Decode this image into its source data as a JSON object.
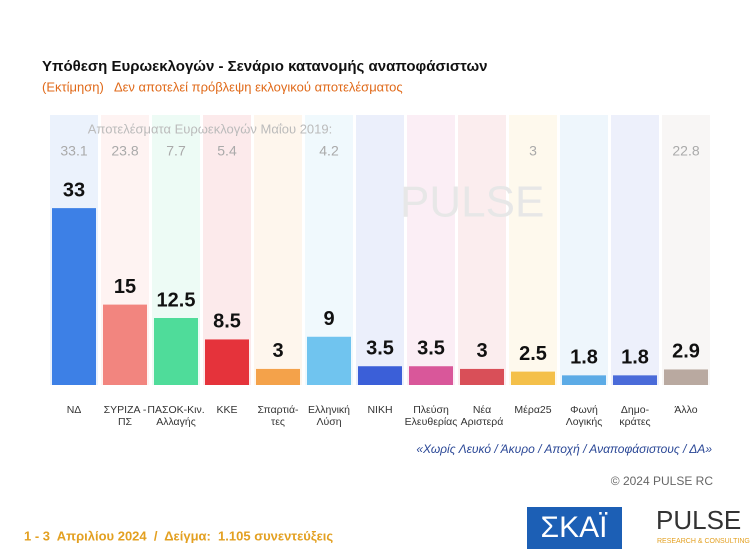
{
  "chart_data": {
    "type": "bar",
    "title": "Υπόθεση Ευρωεκλογών - Σενάριο κατανομής αναποφάσιστων",
    "subtitle": "(Εκτίμηση)   Δεν αποτελεί πρόβλεψη εκλογικού αποτελέσματος",
    "categories": [
      "ΝΔ",
      "ΣΥΡΙΖΑ -\nΠΣ",
      "ΠΑΣΟΚ-Κιν.\nΑλλαγής",
      "ΚΚΕ",
      "Σπαρτιά-\nτες",
      "Ελληνική\nΛύση",
      "ΝΙΚΗ",
      "Πλεύση\nΕλευθερίας",
      "Νέα\nΑριστερά",
      "Μέρα25",
      "Φωνή\nΛογικής",
      "Δημο-\nκράτες",
      "Άλλο"
    ],
    "values": [
      33,
      15,
      12.5,
      8.5,
      3,
      9,
      3.5,
      3.5,
      3,
      2.5,
      1.8,
      1.8,
      2.9
    ],
    "colors": [
      "#3d80e6",
      "#f2857f",
      "#4fdc9a",
      "#e5333b",
      "#f4a24a",
      "#70c4ef",
      "#3b5fd8",
      "#d9579a",
      "#d94f58",
      "#f4c04a",
      "#5cabe6",
      "#4a6bd9",
      "#b9a9a0"
    ],
    "reference": {
      "label": "Αποτελέσματα Ευρωεκλογών Μαΐου 2019:",
      "values": [
        33.1,
        23.8,
        7.7,
        5.4,
        null,
        4.2,
        null,
        null,
        null,
        3,
        null,
        null,
        22.8
      ]
    },
    "note": "«Χωρίς Λευκό / Άκυρο / Αποχή / Αναποφάσιστους / ΔΑ»",
    "copyright": "© 2024 PULSE RC",
    "footer": "1 - 3  Απριλίου 2024  /  Δείγμα:  1.105 συνεντεύξεις"
  },
  "logos": {
    "skai": "ΣΚΑΪ",
    "pulse": "PULSE",
    "pulse_tagline": "RESEARCH & CONSULTING"
  }
}
